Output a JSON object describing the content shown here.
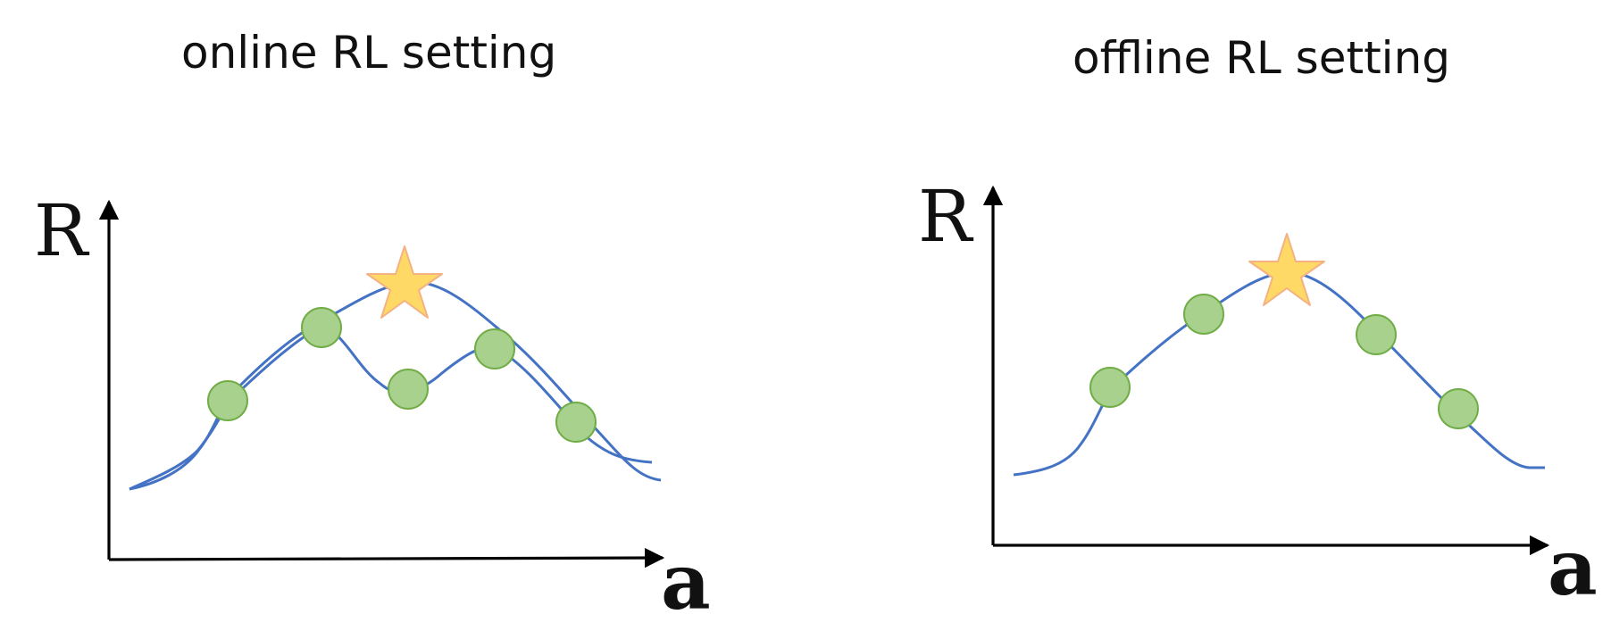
{
  "panels": [
    {
      "title": "online RL setting",
      "y_axis_label": "R",
      "x_axis_label": "a"
    },
    {
      "title": "offline RL setting",
      "y_axis_label": "R",
      "x_axis_label": "a"
    }
  ],
  "colors": {
    "curve": "#4472C4",
    "point_fill": "#A9D18E",
    "point_stroke": "#70AD47",
    "star_fill": "#FFD966",
    "star_stroke": "#F4B183",
    "axis": "#000000"
  },
  "markers": {
    "point": "green-circle",
    "optimum": "star-icon"
  }
}
